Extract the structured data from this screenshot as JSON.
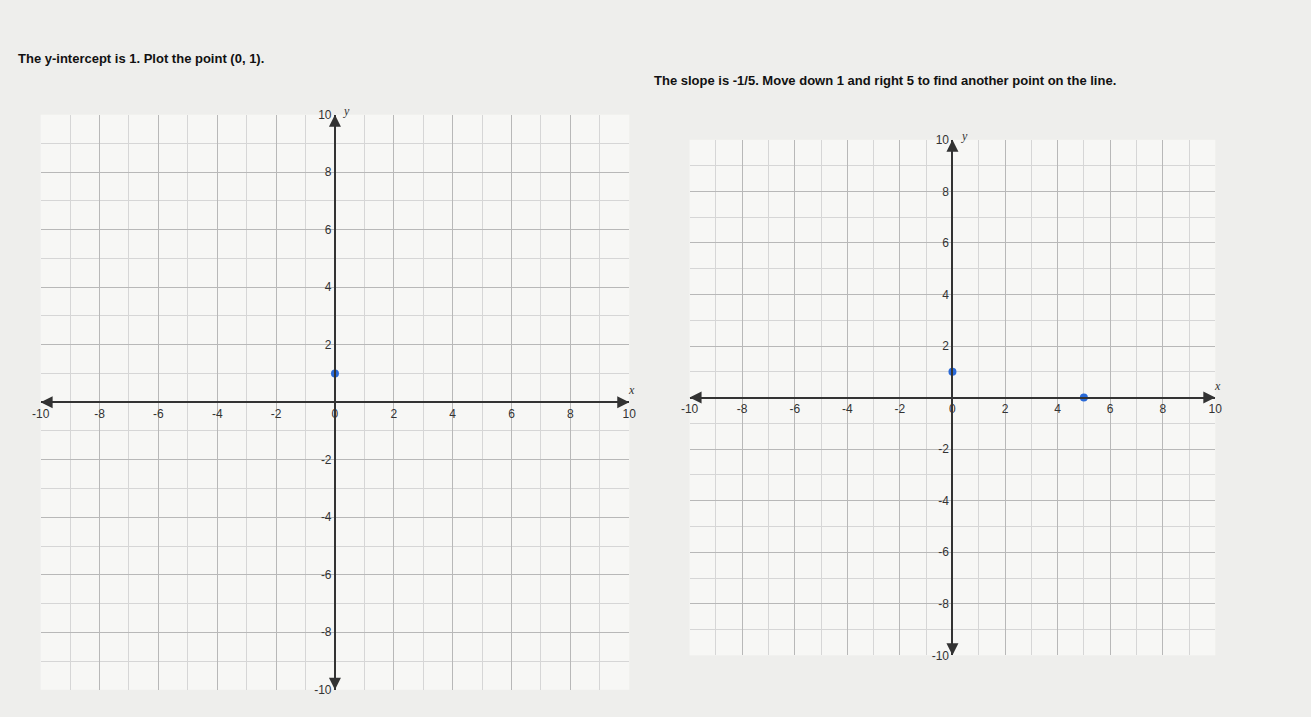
{
  "chart_data": [
    {
      "type": "scatter",
      "title": "The y-intercept is 1. Plot the point (0, 1).",
      "x": [
        0
      ],
      "values": [
        1
      ],
      "color": "#2a6ad8",
      "marker": "circle",
      "xlabel": "x",
      "ylabel": "y",
      "xlim": [
        -10,
        10
      ],
      "ylim": [
        -10,
        10
      ],
      "xticks": [
        -10,
        -8,
        -6,
        -4,
        -2,
        0,
        2,
        4,
        6,
        8,
        10
      ],
      "yticks": [
        -10,
        -8,
        -6,
        -4,
        -2,
        2,
        4,
        6,
        8,
        10
      ],
      "grid": true
    },
    {
      "type": "scatter",
      "title": "The slope is -1/5. Move down 1 and right 5 to find another point on the line.",
      "x": [
        0,
        5
      ],
      "values": [
        1,
        0
      ],
      "color": "#2a6ad8",
      "marker": "circle",
      "xlabel": "x",
      "ylabel": "y",
      "xlim": [
        -10,
        10
      ],
      "ylim": [
        -10,
        10
      ],
      "xticks": [
        -10,
        -8,
        -6,
        -4,
        -2,
        0,
        2,
        4,
        6,
        8,
        10
      ],
      "yticks": [
        -10,
        -8,
        -6,
        -4,
        -2,
        2,
        4,
        6,
        8,
        10
      ],
      "grid": true
    }
  ]
}
